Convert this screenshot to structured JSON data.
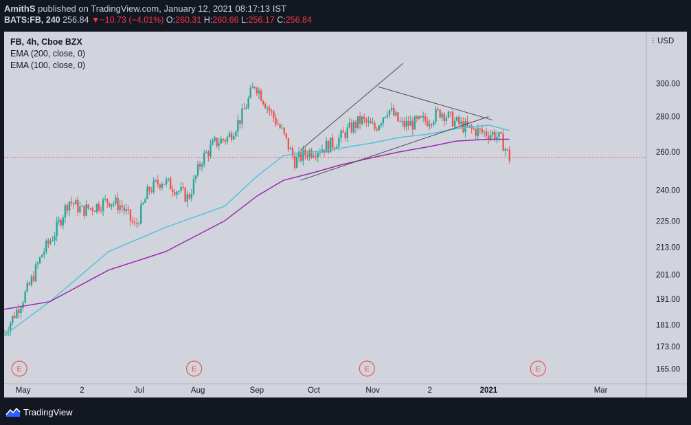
{
  "header": {
    "author": "AmithS",
    "published_text": "published on TradingView.com, January 12, 2021 08:17:13 IST",
    "symbol": "BATS:FB, 240",
    "last": "256.84",
    "change_arrow": "▼",
    "change": "−10.73 (−4.01%)",
    "open_label": "O:",
    "open": "260.31",
    "high_label": "H:",
    "high": "260.66",
    "low_label": "L:",
    "low": "256.17",
    "close_label": "C:",
    "close": "256.84"
  },
  "legend": {
    "title": "FB, 4h, Cboe BZX",
    "ema200": "EMA (200, close, 0)",
    "ema100": "EMA (100, close, 0)"
  },
  "colors": {
    "page_bg": "#131722",
    "chart_bg": "#d1d4dc",
    "up": "#26a69a",
    "down": "#ef5350",
    "ema_fast": "#4fc3dc",
    "ema_slow": "#9c27b0",
    "last_line": "#f23645",
    "trendline": "#4a4e5a"
  },
  "chart_data": {
    "type": "candlestick",
    "symbol": "FB",
    "interval": "4h",
    "currency": "USD",
    "y_scale": "log",
    "y_ticks": [
      165,
      173,
      181,
      191,
      201,
      213,
      225,
      240,
      260,
      280,
      300
    ],
    "y_tick_labels": [
      "165.00",
      "173.00",
      "181.00",
      "191.00",
      "201.00",
      "213.00",
      "225.00",
      "240.00",
      "260.00",
      "280.00",
      "300.00"
    ],
    "y_range": [
      160,
      325
    ],
    "currency_label": "USD",
    "x_tick_labels": [
      "May",
      "2",
      "Jul",
      "Aug",
      "Sep",
      "Oct",
      "Nov",
      "2",
      "2021",
      "Mar"
    ],
    "x_tick_dates": [
      "2020-05-01",
      "2020-06-01",
      "2020-07-01",
      "2020-08-01",
      "2020-09-01",
      "2020-10-01",
      "2020-11-01",
      "2020-12-01",
      "2021-01-01",
      "2021-03-01"
    ],
    "x_range": [
      "2020-04-21",
      "2021-03-25"
    ],
    "last_price": 256.84,
    "earnings_label": "E",
    "earnings_dates": [
      "2020-04-29",
      "2020-07-30",
      "2020-10-29",
      "2021-01-27"
    ],
    "price_path": [
      [
        "2020-04-21",
        178
      ],
      [
        "2020-04-28",
        187
      ],
      [
        "2020-05-04",
        196
      ],
      [
        "2020-05-11",
        210
      ],
      [
        "2020-05-18",
        220
      ],
      [
        "2020-05-25",
        235
      ],
      [
        "2020-06-01",
        230
      ],
      [
        "2020-06-08",
        232
      ],
      [
        "2020-06-15",
        235
      ],
      [
        "2020-06-22",
        232
      ],
      [
        "2020-06-29",
        222
      ],
      [
        "2020-07-06",
        240
      ],
      [
        "2020-07-13",
        245
      ],
      [
        "2020-07-20",
        241
      ],
      [
        "2020-07-27",
        236
      ],
      [
        "2020-08-03",
        256
      ],
      [
        "2020-08-10",
        265
      ],
      [
        "2020-08-17",
        268
      ],
      [
        "2020-08-24",
        280
      ],
      [
        "2020-08-31",
        300
      ],
      [
        "2020-09-07",
        285
      ],
      [
        "2020-09-14",
        272
      ],
      [
        "2020-09-21",
        255
      ],
      [
        "2020-09-28",
        260
      ],
      [
        "2020-10-05",
        262
      ],
      [
        "2020-10-12",
        265
      ],
      [
        "2020-10-19",
        272
      ],
      [
        "2020-10-26",
        278
      ],
      [
        "2020-11-02",
        273
      ],
      [
        "2020-11-09",
        285
      ],
      [
        "2020-11-16",
        275
      ],
      [
        "2020-11-23",
        276
      ],
      [
        "2020-11-30",
        278
      ],
      [
        "2020-12-07",
        283
      ],
      [
        "2020-12-14",
        277
      ],
      [
        "2020-12-21",
        273
      ],
      [
        "2020-12-28",
        271
      ],
      [
        "2021-01-04",
        270
      ],
      [
        "2021-01-08",
        266
      ],
      [
        "2021-01-12",
        256.84
      ]
    ],
    "series": [
      {
        "name": "EMA (100, close, 0)",
        "color": "#4fc3dc",
        "points": [
          [
            "2020-04-21",
            177
          ],
          [
            "2020-05-15",
            190
          ],
          [
            "2020-06-15",
            211
          ],
          [
            "2020-07-15",
            222
          ],
          [
            "2020-08-15",
            232
          ],
          [
            "2020-09-01",
            247
          ],
          [
            "2020-09-15",
            258
          ],
          [
            "2020-10-01",
            260
          ],
          [
            "2020-10-15",
            262
          ],
          [
            "2020-11-01",
            265
          ],
          [
            "2020-11-15",
            268
          ],
          [
            "2020-12-01",
            270
          ],
          [
            "2020-12-15",
            273
          ],
          [
            "2021-01-01",
            275
          ],
          [
            "2021-01-12",
            272
          ]
        ]
      },
      {
        "name": "EMA (200, close, 0)",
        "color": "#9c27b0",
        "points": [
          [
            "2020-04-21",
            187
          ],
          [
            "2020-05-15",
            190
          ],
          [
            "2020-06-15",
            203
          ],
          [
            "2020-07-15",
            211
          ],
          [
            "2020-08-15",
            225
          ],
          [
            "2020-09-01",
            237
          ],
          [
            "2020-09-15",
            245
          ],
          [
            "2020-10-01",
            249
          ],
          [
            "2020-10-15",
            253
          ],
          [
            "2020-11-01",
            257
          ],
          [
            "2020-11-15",
            260
          ],
          [
            "2020-12-01",
            263
          ],
          [
            "2020-12-15",
            266
          ],
          [
            "2021-01-01",
            267
          ],
          [
            "2021-01-12",
            267
          ]
        ]
      }
    ],
    "trendlines": [
      {
        "from": [
          "2020-09-24",
          261
        ],
        "to": [
          "2020-11-17",
          313
        ]
      },
      {
        "from": [
          "2020-09-24",
          245
        ],
        "to": [
          "2021-01-01",
          280
        ]
      },
      {
        "from": [
          "2020-11-04",
          298
        ],
        "to": [
          "2021-01-03",
          278
        ]
      }
    ]
  },
  "footer": {
    "brand": "TradingView"
  }
}
